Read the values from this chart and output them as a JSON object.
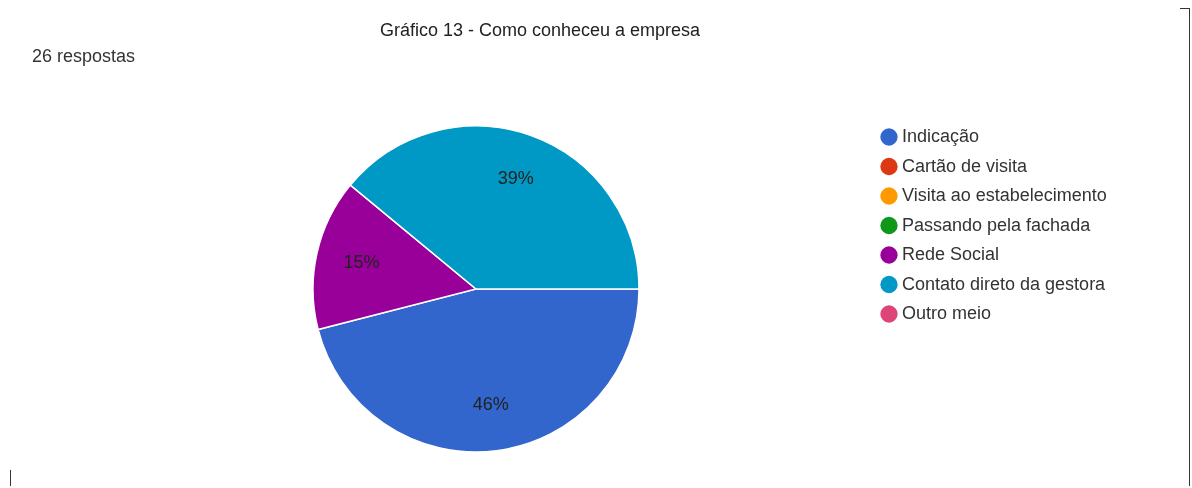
{
  "chart_data": {
    "type": "pie",
    "title": "Gráfico 13 - Como conheceu a empresa",
    "subtitle": "26 respostas",
    "categories": [
      "Indicação",
      "Cartão de visita",
      "Visita ao estabelecimento",
      "Passando pela fachada",
      "Rede Social",
      "Contato direto da gestora",
      "Outro meio"
    ],
    "values": [
      46,
      0,
      0,
      0,
      15,
      39,
      0
    ],
    "value_labels": [
      "46%",
      null,
      null,
      null,
      "15%",
      "39%",
      null
    ],
    "colors": [
      "#3366cc",
      "#dc3912",
      "#ff9900",
      "#109618",
      "#990099",
      "#0099c6",
      "#dd4477"
    ],
    "legend": "right"
  }
}
